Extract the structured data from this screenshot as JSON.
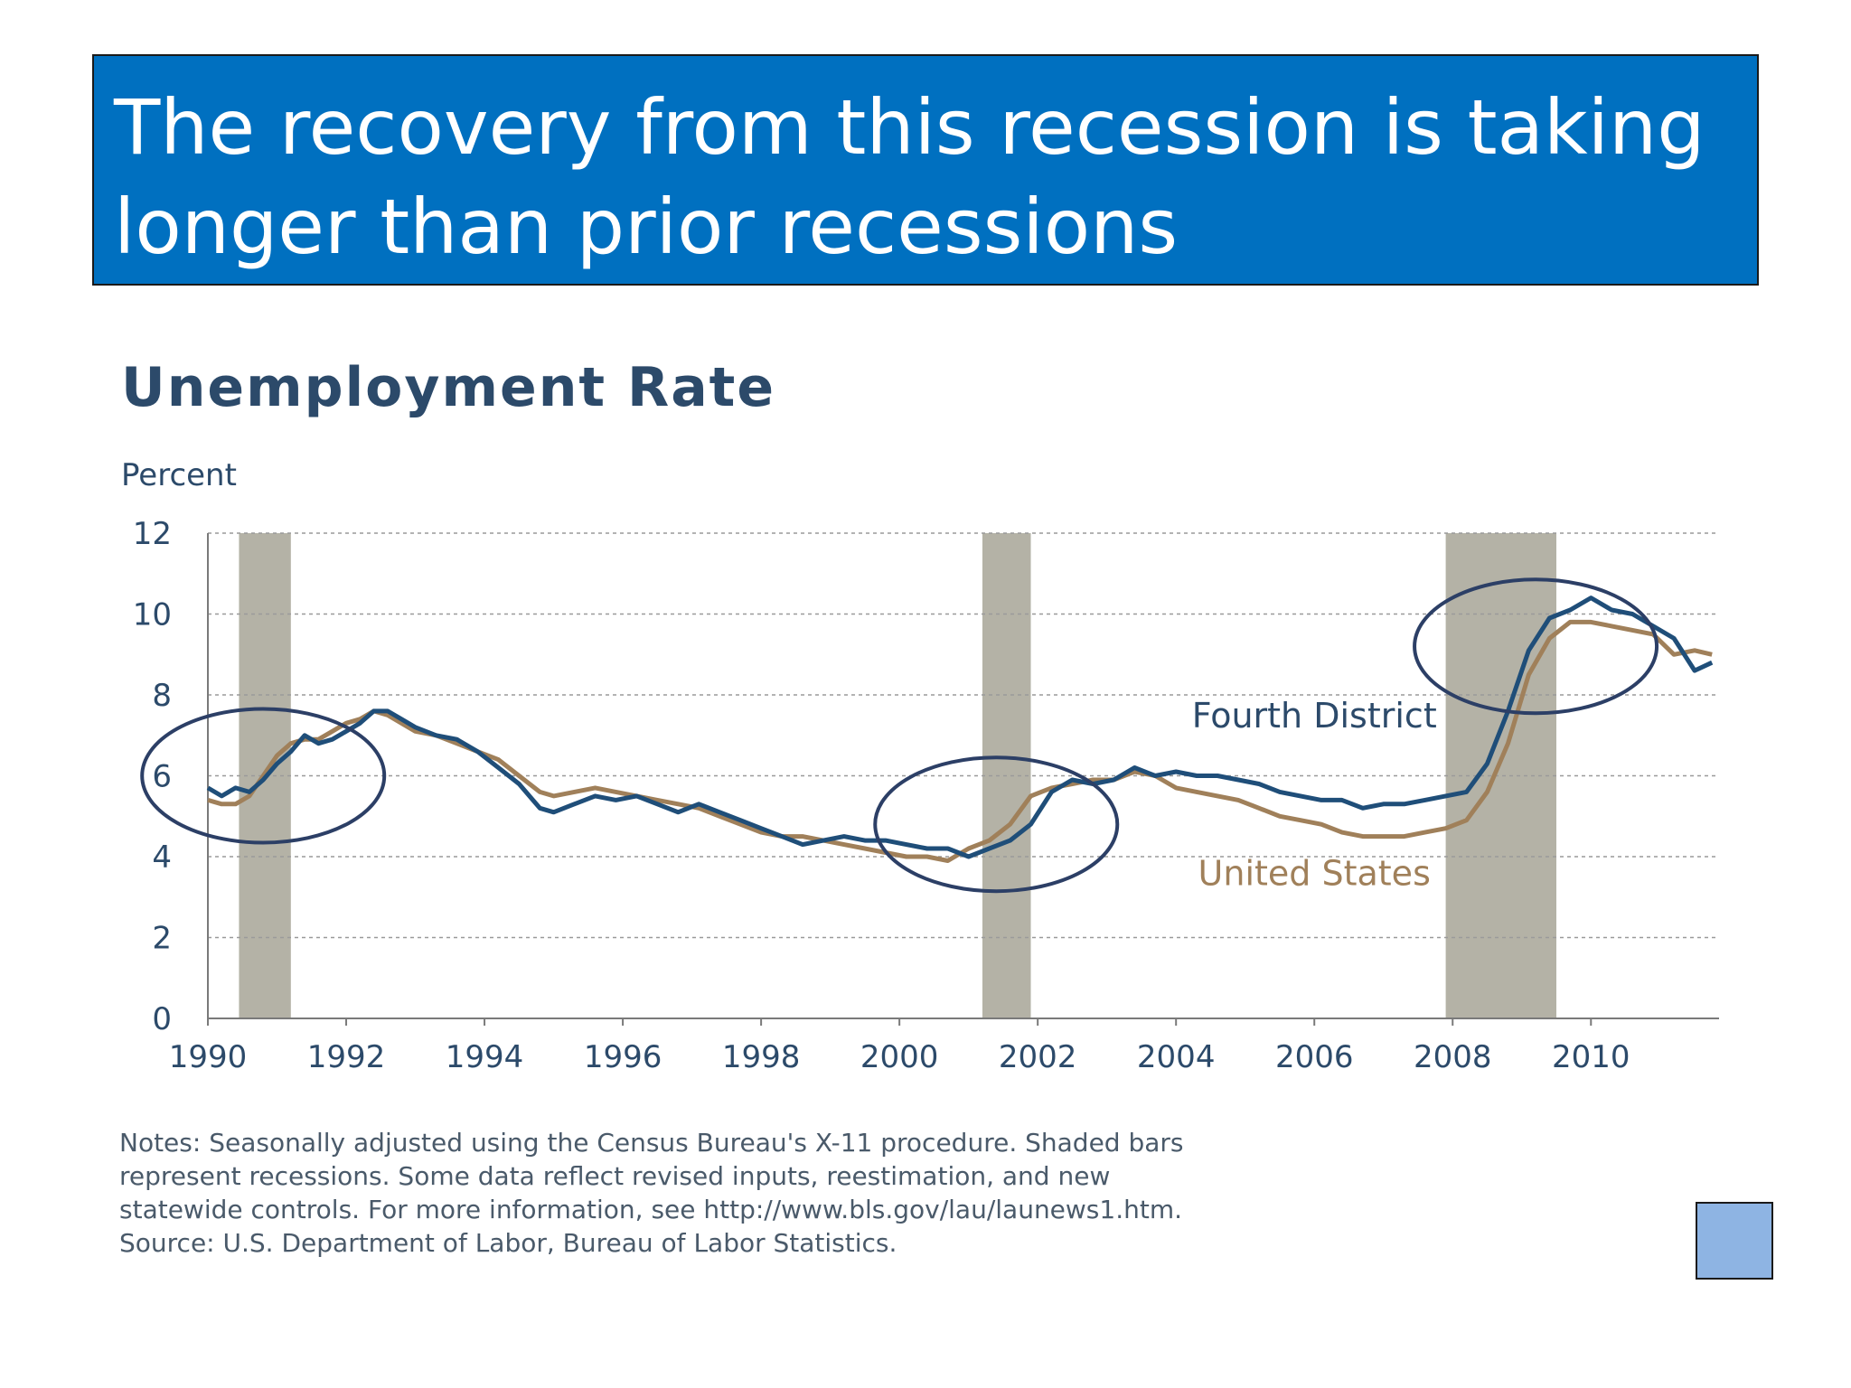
{
  "slide": {
    "title_line1": "The recovery from this recession is taking",
    "title_line2": "longer than prior recessions",
    "title_bg": "#0070c0"
  },
  "chart_data": {
    "type": "line",
    "title": "Unemployment Rate",
    "ylabel": "Percent",
    "xlabel": "",
    "ylim": [
      0,
      12
    ],
    "xlim": [
      1990,
      2011.8
    ],
    "y_ticks": [
      0,
      2,
      4,
      6,
      8,
      10,
      12
    ],
    "x_ticks": [
      "1990",
      "1992",
      "1994",
      "1996",
      "1998",
      "2000",
      "2002",
      "2004",
      "2006",
      "2008",
      "2010"
    ],
    "grid": "horizontal-dashed",
    "recessions": [
      {
        "start": 1990.45,
        "end": 1991.2
      },
      {
        "start": 2001.2,
        "end": 2001.9
      },
      {
        "start": 2007.9,
        "end": 2009.5
      }
    ],
    "recession_color": "#b4b2a6",
    "highlight_circles": [
      {
        "x": 1990.8,
        "y": 6.0
      },
      {
        "x": 2001.4,
        "y": 4.8
      },
      {
        "x": 2009.2,
        "y": 9.2
      }
    ],
    "series": [
      {
        "name": "Fourth District",
        "color": "#1f4e79",
        "x": [
          1990.0,
          1990.2,
          1990.4,
          1990.6,
          1990.8,
          1991.0,
          1991.2,
          1991.4,
          1991.6,
          1991.8,
          1992.0,
          1992.2,
          1992.4,
          1992.6,
          1992.8,
          1993.0,
          1993.3,
          1993.6,
          1993.9,
          1994.2,
          1994.5,
          1994.8,
          1995.0,
          1995.3,
          1995.6,
          1995.9,
          1996.2,
          1996.5,
          1996.8,
          1997.1,
          1997.4,
          1997.7,
          1998.0,
          1998.3,
          1998.6,
          1998.9,
          1999.2,
          1999.5,
          1999.8,
          2000.1,
          2000.4,
          2000.7,
          2001.0,
          2001.3,
          2001.6,
          2001.9,
          2002.2,
          2002.5,
          2002.8,
          2003.1,
          2003.4,
          2003.7,
          2004.0,
          2004.3,
          2004.6,
          2004.9,
          2005.2,
          2005.5,
          2005.8,
          2006.1,
          2006.4,
          2006.7,
          2007.0,
          2007.3,
          2007.6,
          2007.9,
          2008.2,
          2008.5,
          2008.8,
          2009.1,
          2009.4,
          2009.7,
          2010.0,
          2010.3,
          2010.6,
          2010.9,
          2011.2,
          2011.5,
          2011.75
        ],
        "values": [
          5.7,
          5.5,
          5.7,
          5.6,
          5.9,
          6.3,
          6.6,
          7.0,
          6.8,
          6.9,
          7.1,
          7.3,
          7.6,
          7.6,
          7.4,
          7.2,
          7.0,
          6.9,
          6.6,
          6.2,
          5.8,
          5.2,
          5.1,
          5.3,
          5.5,
          5.4,
          5.5,
          5.3,
          5.1,
          5.3,
          5.1,
          4.9,
          4.7,
          4.5,
          4.3,
          4.4,
          4.5,
          4.4,
          4.4,
          4.3,
          4.2,
          4.2,
          4.0,
          4.2,
          4.4,
          4.8,
          5.6,
          5.9,
          5.8,
          5.9,
          6.2,
          6.0,
          6.1,
          6.0,
          6.0,
          5.9,
          5.8,
          5.6,
          5.5,
          5.4,
          5.4,
          5.2,
          5.3,
          5.3,
          5.4,
          5.5,
          5.6,
          6.3,
          7.6,
          9.1,
          9.9,
          10.1,
          10.4,
          10.1,
          10.0,
          9.7,
          9.4,
          8.6,
          8.8
        ]
      },
      {
        "name": "United States",
        "color": "#a0805a",
        "x": [
          1990.0,
          1990.2,
          1990.4,
          1990.6,
          1990.8,
          1991.0,
          1991.2,
          1991.4,
          1991.6,
          1991.8,
          1992.0,
          1992.2,
          1992.4,
          1992.6,
          1992.8,
          1993.0,
          1993.3,
          1993.6,
          1993.9,
          1994.2,
          1994.5,
          1994.8,
          1995.0,
          1995.3,
          1995.6,
          1995.9,
          1996.2,
          1996.5,
          1996.8,
          1997.1,
          1997.4,
          1997.7,
          1998.0,
          1998.3,
          1998.6,
          1998.9,
          1999.2,
          1999.5,
          1999.8,
          2000.1,
          2000.4,
          2000.7,
          2001.0,
          2001.3,
          2001.6,
          2001.9,
          2002.2,
          2002.5,
          2002.8,
          2003.1,
          2003.4,
          2003.7,
          2004.0,
          2004.3,
          2004.6,
          2004.9,
          2005.2,
          2005.5,
          2005.8,
          2006.1,
          2006.4,
          2006.7,
          2007.0,
          2007.3,
          2007.6,
          2007.9,
          2008.2,
          2008.5,
          2008.8,
          2009.1,
          2009.4,
          2009.7,
          2010.0,
          2010.3,
          2010.6,
          2010.9,
          2011.2,
          2011.5,
          2011.75
        ],
        "values": [
          5.4,
          5.3,
          5.3,
          5.5,
          6.0,
          6.5,
          6.8,
          6.9,
          6.9,
          7.1,
          7.3,
          7.4,
          7.6,
          7.5,
          7.3,
          7.1,
          7.0,
          6.8,
          6.6,
          6.4,
          6.0,
          5.6,
          5.5,
          5.6,
          5.7,
          5.6,
          5.5,
          5.4,
          5.3,
          5.2,
          5.0,
          4.8,
          4.6,
          4.5,
          4.5,
          4.4,
          4.3,
          4.2,
          4.1,
          4.0,
          4.0,
          3.9,
          4.2,
          4.4,
          4.8,
          5.5,
          5.7,
          5.8,
          5.9,
          5.9,
          6.1,
          6.0,
          5.7,
          5.6,
          5.5,
          5.4,
          5.2,
          5.0,
          4.9,
          4.8,
          4.6,
          4.5,
          4.5,
          4.5,
          4.6,
          4.7,
          4.9,
          5.6,
          6.8,
          8.5,
          9.4,
          9.8,
          9.8,
          9.7,
          9.6,
          9.5,
          9.0,
          9.1,
          9.0
        ]
      }
    ],
    "annotations": [
      {
        "text": "Fourth District",
        "color": "#2c4a6a"
      },
      {
        "text": "United States",
        "color": "#a0805a"
      }
    ],
    "notes": [
      "Notes:  Seasonally adjusted using the Census Bureau's X-11 procedure.  Shaded bars",
      "represent recessions. Some data reflect revised inputs, reestimation, and new",
      "statewide  controls. For more information, see http://www.bls.gov/lau/launews1.htm.",
      "Source: U.S. Department of Labor, Bureau of Labor Statistics."
    ]
  }
}
